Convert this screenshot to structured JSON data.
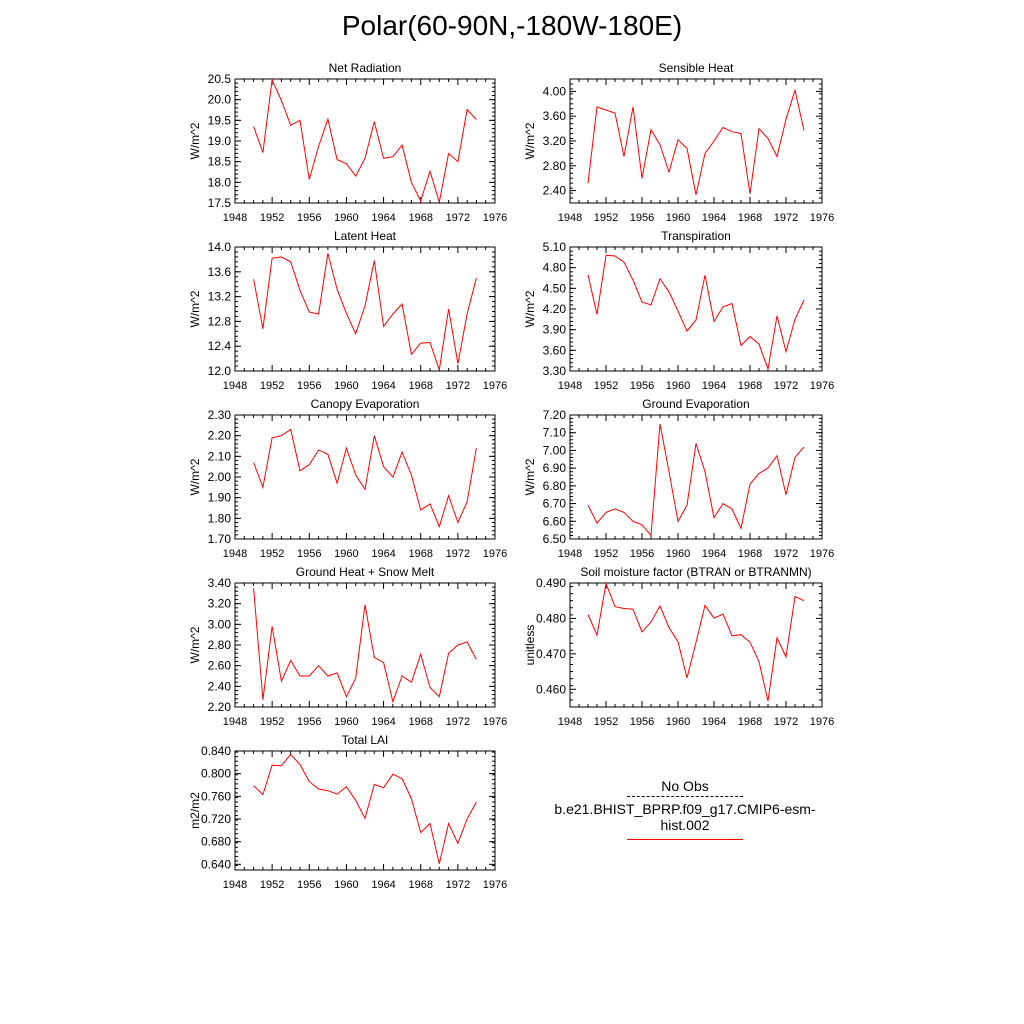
{
  "title": "Polar(60-90N,-180W-180E)",
  "legend": {
    "obs_label": "No Obs",
    "model_label": "b.e21.BHIST_BPRP.f09_g17.CMIP6-esm-hist.002",
    "obs_color": "#000000",
    "model_color": "#ff0000"
  },
  "chart_data": [
    {
      "type": "line",
      "title": "Net Radiation",
      "xlabel": "",
      "ylabel": "W/m^2",
      "xlim": [
        1948,
        1976
      ],
      "xticks": [
        1948,
        1952,
        1956,
        1960,
        1964,
        1968,
        1972,
        1976
      ],
      "ylim": [
        17.5,
        20.5
      ],
      "yticks": [
        "17.5",
        "18.0",
        "18.5",
        "19.0",
        "19.5",
        "20.0",
        "20.5"
      ],
      "series": [
        {
          "name": "b.e21.BHIST_BPRP.f09_g17.CMIP6-esm-hist.002",
          "color": "#ff0000",
          "x": [
            1950,
            1951,
            1952,
            1953,
            1954,
            1955,
            1956,
            1957,
            1958,
            1959,
            1960,
            1961,
            1962,
            1963,
            1964,
            1965,
            1966,
            1967,
            1968,
            1969,
            1970,
            1971,
            1972,
            1973,
            1974
          ],
          "values": [
            19.35,
            18.72,
            20.48,
            19.98,
            19.38,
            19.5,
            18.07,
            18.87,
            19.53,
            18.55,
            18.45,
            18.15,
            18.58,
            19.47,
            18.58,
            18.62,
            18.9,
            18.0,
            17.55,
            18.27,
            17.52,
            18.7,
            18.5,
            19.76,
            19.52
          ]
        }
      ]
    },
    {
      "type": "line",
      "title": "Sensible Heat",
      "xlabel": "",
      "ylabel": "W/m^2",
      "xlim": [
        1948,
        1976
      ],
      "xticks": [
        1948,
        1952,
        1956,
        1960,
        1964,
        1968,
        1972,
        1976
      ],
      "ylim": [
        2.2,
        4.2
      ],
      "yticks": [
        "2.40",
        "2.80",
        "3.20",
        "3.60",
        "4.00"
      ],
      "series": [
        {
          "name": "b.e21.BHIST_BPRP.f09_g17.CMIP6-esm-hist.002",
          "color": "#ff0000",
          "x": [
            1950,
            1951,
            1952,
            1953,
            1954,
            1955,
            1956,
            1957,
            1958,
            1959,
            1960,
            1961,
            1962,
            1963,
            1964,
            1965,
            1966,
            1967,
            1968,
            1969,
            1970,
            1971,
            1972,
            1973,
            1974
          ],
          "values": [
            2.52,
            3.75,
            3.7,
            3.65,
            2.95,
            3.75,
            2.6,
            3.38,
            3.14,
            2.7,
            3.22,
            3.08,
            2.33,
            3.0,
            3.2,
            3.42,
            3.35,
            3.32,
            2.35,
            3.4,
            3.24,
            2.95,
            3.55,
            4.02,
            3.37
          ]
        }
      ]
    },
    {
      "type": "line",
      "title": "Latent Heat",
      "xlabel": "",
      "ylabel": "W/m^2",
      "xlim": [
        1948,
        1976
      ],
      "xticks": [
        1948,
        1952,
        1956,
        1960,
        1964,
        1968,
        1972,
        1976
      ],
      "ylim": [
        12.0,
        14.0
      ],
      "yticks": [
        "12.0",
        "12.4",
        "12.8",
        "13.2",
        "13.6",
        "14.0"
      ],
      "series": [
        {
          "name": "b.e21.BHIST_BPRP.f09_g17.CMIP6-esm-hist.002",
          "color": "#ff0000",
          "x": [
            1950,
            1951,
            1952,
            1953,
            1954,
            1955,
            1956,
            1957,
            1958,
            1959,
            1960,
            1961,
            1962,
            1963,
            1964,
            1965,
            1966,
            1967,
            1968,
            1969,
            1970,
            1971,
            1972,
            1973,
            1974
          ],
          "values": [
            13.48,
            12.68,
            13.82,
            13.84,
            13.76,
            13.3,
            12.95,
            12.92,
            13.9,
            13.32,
            12.93,
            12.6,
            13.05,
            13.78,
            12.72,
            12.92,
            13.08,
            12.27,
            12.45,
            12.46,
            12.02,
            13.0,
            12.12,
            12.92,
            13.5
          ]
        }
      ]
    },
    {
      "type": "line",
      "title": "Transpiration",
      "xlabel": "",
      "ylabel": "W/m^2",
      "xlim": [
        1948,
        1976
      ],
      "xticks": [
        1948,
        1952,
        1956,
        1960,
        1964,
        1968,
        1972,
        1976
      ],
      "ylim": [
        3.3,
        5.1
      ],
      "yticks": [
        "3.30",
        "3.60",
        "3.90",
        "4.20",
        "4.50",
        "4.80",
        "5.10"
      ],
      "series": [
        {
          "name": "b.e21.BHIST_BPRP.f09_g17.CMIP6-esm-hist.002",
          "color": "#ff0000",
          "x": [
            1950,
            1951,
            1952,
            1953,
            1954,
            1955,
            1956,
            1957,
            1958,
            1959,
            1960,
            1961,
            1962,
            1963,
            1964,
            1965,
            1966,
            1967,
            1968,
            1969,
            1970,
            1971,
            1972,
            1973,
            1974
          ],
          "values": [
            4.7,
            4.12,
            4.98,
            4.97,
            4.88,
            4.62,
            4.3,
            4.26,
            4.64,
            4.45,
            4.17,
            3.88,
            4.04,
            4.69,
            4.02,
            4.23,
            4.28,
            3.67,
            3.8,
            3.69,
            3.33,
            4.1,
            3.58,
            4.05,
            4.33
          ]
        }
      ]
    },
    {
      "type": "line",
      "title": "Canopy Evaporation",
      "xlabel": "",
      "ylabel": "W/m^2",
      "xlim": [
        1948,
        1976
      ],
      "xticks": [
        1948,
        1952,
        1956,
        1960,
        1964,
        1968,
        1972,
        1976
      ],
      "ylim": [
        1.7,
        2.3
      ],
      "yticks": [
        "1.70",
        "1.80",
        "1.90",
        "2.00",
        "2.10",
        "2.20",
        "2.30"
      ],
      "series": [
        {
          "name": "b.e21.BHIST_BPRP.f09_g17.CMIP6-esm-hist.002",
          "color": "#ff0000",
          "x": [
            1950,
            1951,
            1952,
            1953,
            1954,
            1955,
            1956,
            1957,
            1958,
            1959,
            1960,
            1961,
            1962,
            1963,
            1964,
            1965,
            1966,
            1967,
            1968,
            1969,
            1970,
            1971,
            1972,
            1973,
            1974
          ],
          "values": [
            2.07,
            1.95,
            2.19,
            2.2,
            2.23,
            2.03,
            2.06,
            2.13,
            2.11,
            1.97,
            2.14,
            2.01,
            1.94,
            2.2,
            2.05,
            2.0,
            2.12,
            2.01,
            1.84,
            1.87,
            1.76,
            1.91,
            1.78,
            1.88,
            2.14
          ]
        }
      ]
    },
    {
      "type": "line",
      "title": "Ground Evaporation",
      "xlabel": "",
      "ylabel": "W/m^2",
      "xlim": [
        1948,
        1976
      ],
      "xticks": [
        1948,
        1952,
        1956,
        1960,
        1964,
        1968,
        1972,
        1976
      ],
      "ylim": [
        6.5,
        7.2
      ],
      "yticks": [
        "6.50",
        "6.60",
        "6.70",
        "6.80",
        "6.90",
        "7.00",
        "7.10",
        "7.20"
      ],
      "series": [
        {
          "name": "b.e21.BHIST_BPRP.f09_g17.CMIP6-esm-hist.002",
          "color": "#ff0000",
          "x": [
            1950,
            1951,
            1952,
            1953,
            1954,
            1955,
            1956,
            1957,
            1958,
            1959,
            1960,
            1961,
            1962,
            1963,
            1964,
            1965,
            1966,
            1967,
            1968,
            1969,
            1970,
            1971,
            1972,
            1973,
            1974
          ],
          "values": [
            6.69,
            6.59,
            6.65,
            6.67,
            6.65,
            6.6,
            6.58,
            6.52,
            7.15,
            6.88,
            6.6,
            6.69,
            7.04,
            6.88,
            6.62,
            6.7,
            6.67,
            6.56,
            6.81,
            6.87,
            6.9,
            6.97,
            6.75,
            6.96,
            7.02
          ]
        }
      ]
    },
    {
      "type": "line",
      "title": "Ground Heat + Snow Melt",
      "xlabel": "",
      "ylabel": "W/m^2",
      "xlim": [
        1948,
        1976
      ],
      "xticks": [
        1948,
        1952,
        1956,
        1960,
        1964,
        1968,
        1972,
        1976
      ],
      "ylim": [
        2.2,
        3.4
      ],
      "yticks": [
        "2.20",
        "2.40",
        "2.60",
        "2.80",
        "3.00",
        "3.20",
        "3.40"
      ],
      "series": [
        {
          "name": "b.e21.BHIST_BPRP.f09_g17.CMIP6-esm-hist.002",
          "color": "#ff0000",
          "x": [
            1950,
            1951,
            1952,
            1953,
            1954,
            1955,
            1956,
            1957,
            1958,
            1959,
            1960,
            1961,
            1962,
            1963,
            1964,
            1965,
            1966,
            1967,
            1968,
            1969,
            1970,
            1971,
            1972,
            1973,
            1974
          ],
          "values": [
            3.35,
            2.27,
            2.98,
            2.45,
            2.65,
            2.5,
            2.5,
            2.6,
            2.5,
            2.53,
            2.3,
            2.48,
            3.19,
            2.68,
            2.63,
            2.25,
            2.5,
            2.44,
            2.71,
            2.39,
            2.3,
            2.72,
            2.8,
            2.83,
            2.66
          ]
        }
      ]
    },
    {
      "type": "line",
      "title": "Soil moisture factor (BTRAN or BTRANMN)",
      "xlabel": "",
      "ylabel": "unitless",
      "xlim": [
        1948,
        1976
      ],
      "xticks": [
        1948,
        1952,
        1956,
        1960,
        1964,
        1968,
        1972,
        1976
      ],
      "ylim": [
        0.455,
        0.49
      ],
      "yticks": [
        "0.460",
        "0.470",
        "0.480",
        "0.490"
      ],
      "series": [
        {
          "name": "b.e21.BHIST_BPRP.f09_g17.CMIP6-esm-hist.002",
          "color": "#ff0000",
          "x": [
            1950,
            1951,
            1952,
            1953,
            1954,
            1955,
            1956,
            1957,
            1958,
            1959,
            1960,
            1961,
            1962,
            1963,
            1964,
            1965,
            1966,
            1967,
            1968,
            1969,
            1970,
            1971,
            1972,
            1973,
            1974
          ],
          "values": [
            0.4811,
            0.4753,
            0.4899,
            0.4833,
            0.4828,
            0.4826,
            0.4762,
            0.479,
            0.4835,
            0.4774,
            0.4734,
            0.4632,
            0.4732,
            0.4837,
            0.4801,
            0.4812,
            0.4751,
            0.4754,
            0.4733,
            0.4678,
            0.4567,
            0.4745,
            0.4691,
            0.4862,
            0.485
          ]
        }
      ]
    },
    {
      "type": "line",
      "title": "Total LAI",
      "xlabel": "",
      "ylabel": "m2/m2",
      "xlim": [
        1948,
        1976
      ],
      "xticks": [
        1948,
        1952,
        1956,
        1960,
        1964,
        1968,
        1972,
        1976
      ],
      "ylim": [
        0.63,
        0.84
      ],
      "yticks": [
        "0.640",
        "0.680",
        "0.720",
        "0.760",
        "0.800",
        "0.840"
      ],
      "series": [
        {
          "name": "b.e21.BHIST_BPRP.f09_g17.CMIP6-esm-hist.002",
          "color": "#ff0000",
          "x": [
            1950,
            1951,
            1952,
            1953,
            1954,
            1955,
            1956,
            1957,
            1958,
            1959,
            1960,
            1961,
            1962,
            1963,
            1964,
            1965,
            1966,
            1967,
            1968,
            1969,
            1970,
            1971,
            1972,
            1973,
            1974
          ],
          "values": [
            0.779,
            0.763,
            0.815,
            0.814,
            0.834,
            0.816,
            0.786,
            0.773,
            0.77,
            0.764,
            0.777,
            0.753,
            0.721,
            0.781,
            0.775,
            0.799,
            0.791,
            0.756,
            0.696,
            0.712,
            0.641,
            0.712,
            0.677,
            0.72,
            0.75
          ]
        }
      ]
    }
  ]
}
